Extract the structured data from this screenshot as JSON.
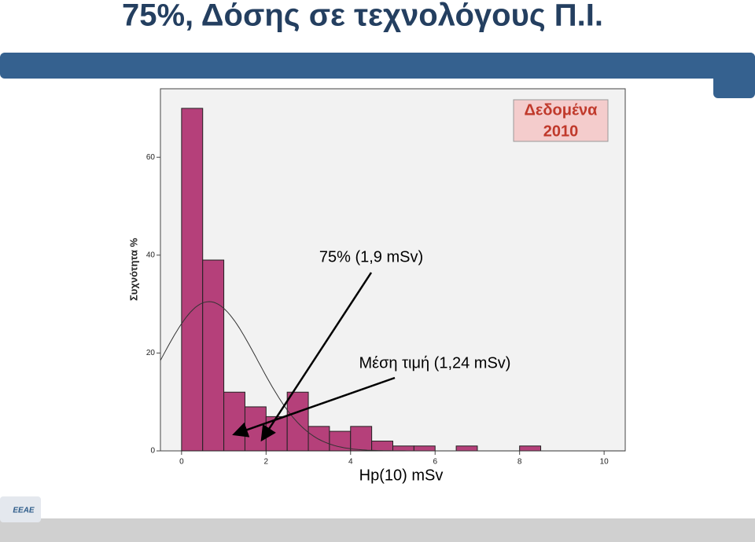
{
  "title": "75%, Δόσης σε τεχνολόγους Π.Ι.",
  "badge": {
    "line1": "Δεδομένα",
    "line2": "2010"
  },
  "logo": "ΕΕΑΕ",
  "chart_data": {
    "type": "histogram",
    "x_label": "Hp(10) mSv",
    "y_label": "Συχνότητα %",
    "bins": [
      0,
      0.5,
      1,
      1.5,
      2,
      2.5,
      3,
      3.5,
      4,
      4.5,
      5,
      5.5,
      6,
      6.5,
      7,
      7.5,
      8,
      8.5
    ],
    "values": [
      70,
      39,
      12,
      9,
      7,
      12,
      5,
      4,
      5,
      2,
      1,
      1,
      0,
      1,
      0,
      0,
      1
    ],
    "color": "#b5407a",
    "xlim": [
      -0.5,
      10.5
    ],
    "ylim": [
      0,
      74
    ],
    "xticks": [
      0,
      2,
      4,
      6,
      8,
      10
    ],
    "yticks": [
      0,
      20,
      40,
      60
    ],
    "normal_curve": {
      "mean": 0.65,
      "sd": 1.15,
      "peak": 30.5
    },
    "annotations": [
      {
        "text": "75% (1,9 mSv)",
        "x": 1.9
      },
      {
        "text": "Μέση τιμή (1,24 mSv)",
        "x": 1.24
      }
    ]
  }
}
